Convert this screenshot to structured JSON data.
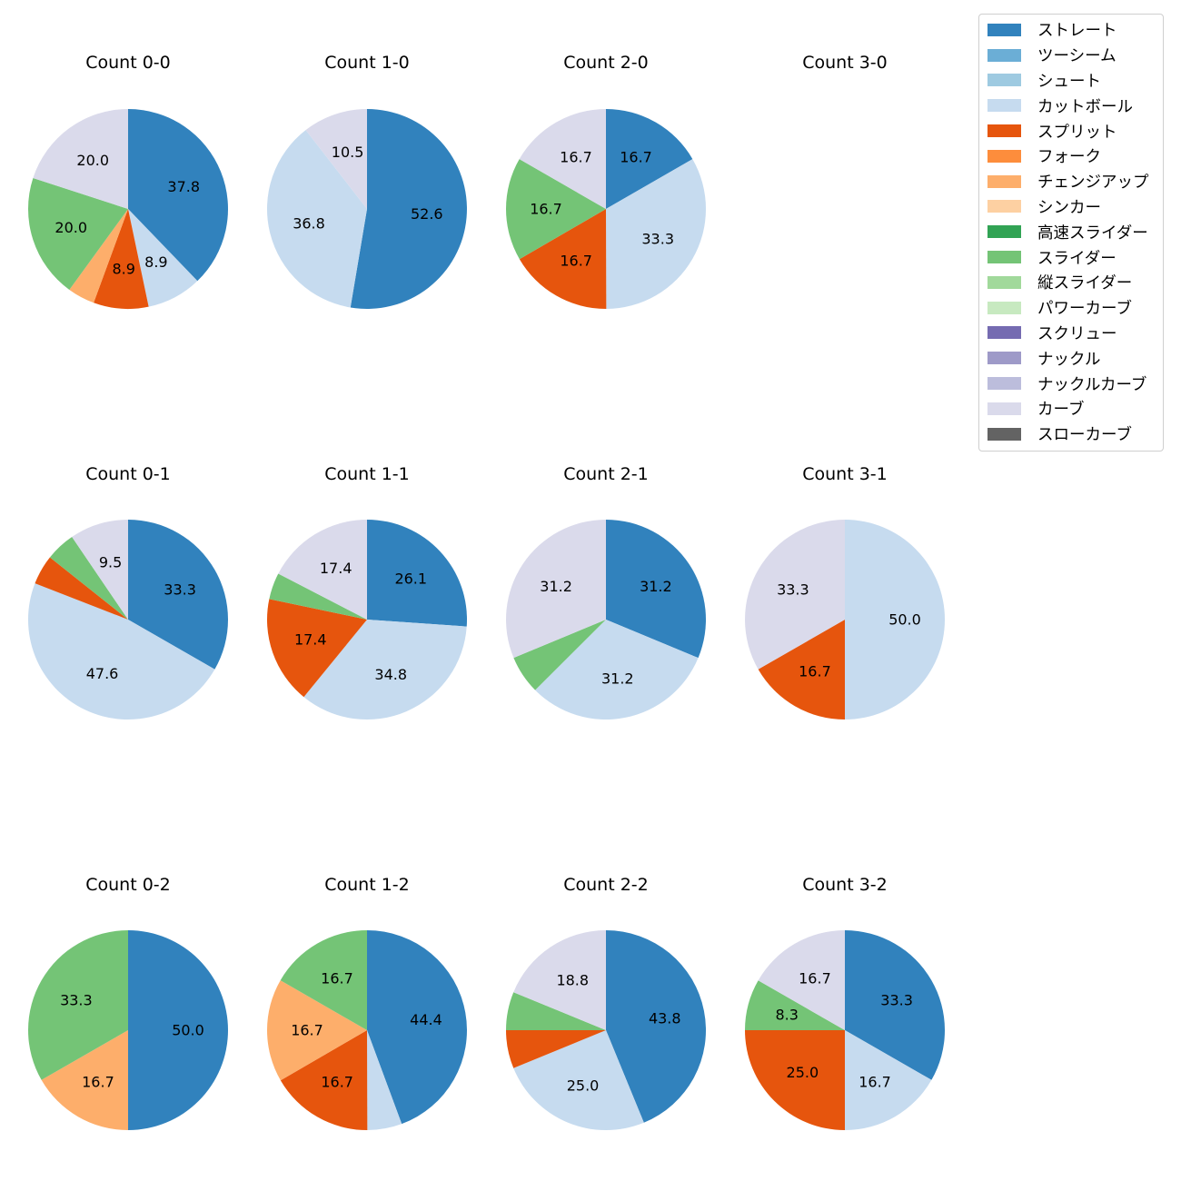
{
  "chart_data": {
    "type": "pie",
    "legend_position": "top-right",
    "legend": [
      {
        "name": "ストレート",
        "color": "#3182bd"
      },
      {
        "name": "ツーシーム",
        "color": "#6baed6"
      },
      {
        "name": "シュート",
        "color": "#9ecae1"
      },
      {
        "name": "カットボール",
        "color": "#c6dbef"
      },
      {
        "name": "スプリット",
        "color": "#e6550d"
      },
      {
        "name": "フォーク",
        "color": "#fd8d3c"
      },
      {
        "name": "チェンジアップ",
        "color": "#fdae6b"
      },
      {
        "name": "シンカー",
        "color": "#fdd0a2"
      },
      {
        "name": "高速スライダー",
        "color": "#31a354"
      },
      {
        "name": "スライダー",
        "color": "#74c476"
      },
      {
        "name": "縦スライダー",
        "color": "#a1d99b"
      },
      {
        "name": "パワーカーブ",
        "color": "#c7e9c0"
      },
      {
        "name": "スクリュー",
        "color": "#756bb1"
      },
      {
        "name": "ナックル",
        "color": "#9e9ac8"
      },
      {
        "name": "ナックルカーブ",
        "color": "#bcbddc"
      },
      {
        "name": "カーブ",
        "color": "#dadaeb"
      },
      {
        "name": "スローカーブ",
        "color": "#636363"
      }
    ],
    "pies": [
      {
        "title": "Count 0-0",
        "slices": [
          {
            "pitch": "ストレート",
            "value": 37.8,
            "label": "37.8"
          },
          {
            "pitch": "カットボール",
            "value": 8.9,
            "label": "8.9"
          },
          {
            "pitch": "スプリット",
            "value": 8.9,
            "label": "8.9"
          },
          {
            "pitch": "チェンジアップ",
            "value": 4.4,
            "label": ""
          },
          {
            "pitch": "スライダー",
            "value": 20.0,
            "label": "20.0"
          },
          {
            "pitch": "カーブ",
            "value": 20.0,
            "label": "20.0"
          }
        ]
      },
      {
        "title": "Count 1-0",
        "slices": [
          {
            "pitch": "ストレート",
            "value": 52.6,
            "label": "52.6"
          },
          {
            "pitch": "カットボール",
            "value": 36.8,
            "label": "36.8"
          },
          {
            "pitch": "カーブ",
            "value": 10.5,
            "label": "10.5"
          }
        ]
      },
      {
        "title": "Count 2-0",
        "slices": [
          {
            "pitch": "ストレート",
            "value": 16.7,
            "label": "16.7"
          },
          {
            "pitch": "カットボール",
            "value": 33.3,
            "label": "33.3"
          },
          {
            "pitch": "スプリット",
            "value": 16.7,
            "label": "16.7"
          },
          {
            "pitch": "スライダー",
            "value": 16.7,
            "label": "16.7"
          },
          {
            "pitch": "カーブ",
            "value": 16.7,
            "label": "16.7"
          }
        ]
      },
      {
        "title": "Count 3-0",
        "slices": []
      },
      {
        "title": "Count 0-1",
        "slices": [
          {
            "pitch": "ストレート",
            "value": 33.3,
            "label": "33.3"
          },
          {
            "pitch": "カットボール",
            "value": 47.6,
            "label": "47.6"
          },
          {
            "pitch": "スプリット",
            "value": 4.8,
            "label": ""
          },
          {
            "pitch": "スライダー",
            "value": 4.8,
            "label": ""
          },
          {
            "pitch": "カーブ",
            "value": 9.5,
            "label": "9.5"
          }
        ]
      },
      {
        "title": "Count 1-1",
        "slices": [
          {
            "pitch": "ストレート",
            "value": 26.1,
            "label": "26.1"
          },
          {
            "pitch": "カットボール",
            "value": 34.8,
            "label": "34.8"
          },
          {
            "pitch": "スプリット",
            "value": 17.4,
            "label": "17.4"
          },
          {
            "pitch": "スライダー",
            "value": 4.3,
            "label": ""
          },
          {
            "pitch": "カーブ",
            "value": 17.4,
            "label": "17.4"
          }
        ]
      },
      {
        "title": "Count 2-1",
        "slices": [
          {
            "pitch": "ストレート",
            "value": 31.2,
            "label": "31.2"
          },
          {
            "pitch": "カットボール",
            "value": 31.2,
            "label": "31.2"
          },
          {
            "pitch": "スライダー",
            "value": 6.2,
            "label": ""
          },
          {
            "pitch": "カーブ",
            "value": 31.2,
            "label": "31.2"
          }
        ]
      },
      {
        "title": "Count 3-1",
        "slices": [
          {
            "pitch": "カットボール",
            "value": 50.0,
            "label": "50.0"
          },
          {
            "pitch": "スプリット",
            "value": 16.7,
            "label": "16.7"
          },
          {
            "pitch": "カーブ",
            "value": 33.3,
            "label": "33.3"
          }
        ]
      },
      {
        "title": "Count 0-2",
        "slices": [
          {
            "pitch": "ストレート",
            "value": 50.0,
            "label": "50.0"
          },
          {
            "pitch": "チェンジアップ",
            "value": 16.7,
            "label": "16.7"
          },
          {
            "pitch": "スライダー",
            "value": 33.3,
            "label": "33.3"
          }
        ]
      },
      {
        "title": "Count 1-2",
        "slices": [
          {
            "pitch": "ストレート",
            "value": 44.4,
            "label": "44.4"
          },
          {
            "pitch": "カットボール",
            "value": 5.6,
            "label": ""
          },
          {
            "pitch": "スプリット",
            "value": 16.7,
            "label": "16.7"
          },
          {
            "pitch": "チェンジアップ",
            "value": 16.7,
            "label": "16.7"
          },
          {
            "pitch": "スライダー",
            "value": 16.7,
            "label": "16.7"
          }
        ]
      },
      {
        "title": "Count 2-2",
        "slices": [
          {
            "pitch": "ストレート",
            "value": 43.8,
            "label": "43.8"
          },
          {
            "pitch": "カットボール",
            "value": 25.0,
            "label": "25.0"
          },
          {
            "pitch": "スプリット",
            "value": 6.2,
            "label": ""
          },
          {
            "pitch": "スライダー",
            "value": 6.2,
            "label": ""
          },
          {
            "pitch": "カーブ",
            "value": 18.8,
            "label": "18.8"
          }
        ]
      },
      {
        "title": "Count 3-2",
        "slices": [
          {
            "pitch": "ストレート",
            "value": 33.3,
            "label": "33.3"
          },
          {
            "pitch": "カットボール",
            "value": 16.7,
            "label": "16.7"
          },
          {
            "pitch": "スプリット",
            "value": 25.0,
            "label": "25.0"
          },
          {
            "pitch": "スライダー",
            "value": 8.3,
            "label": "8.3"
          },
          {
            "pitch": "カーブ",
            "value": 16.7,
            "label": "16.7"
          }
        ]
      }
    ]
  }
}
